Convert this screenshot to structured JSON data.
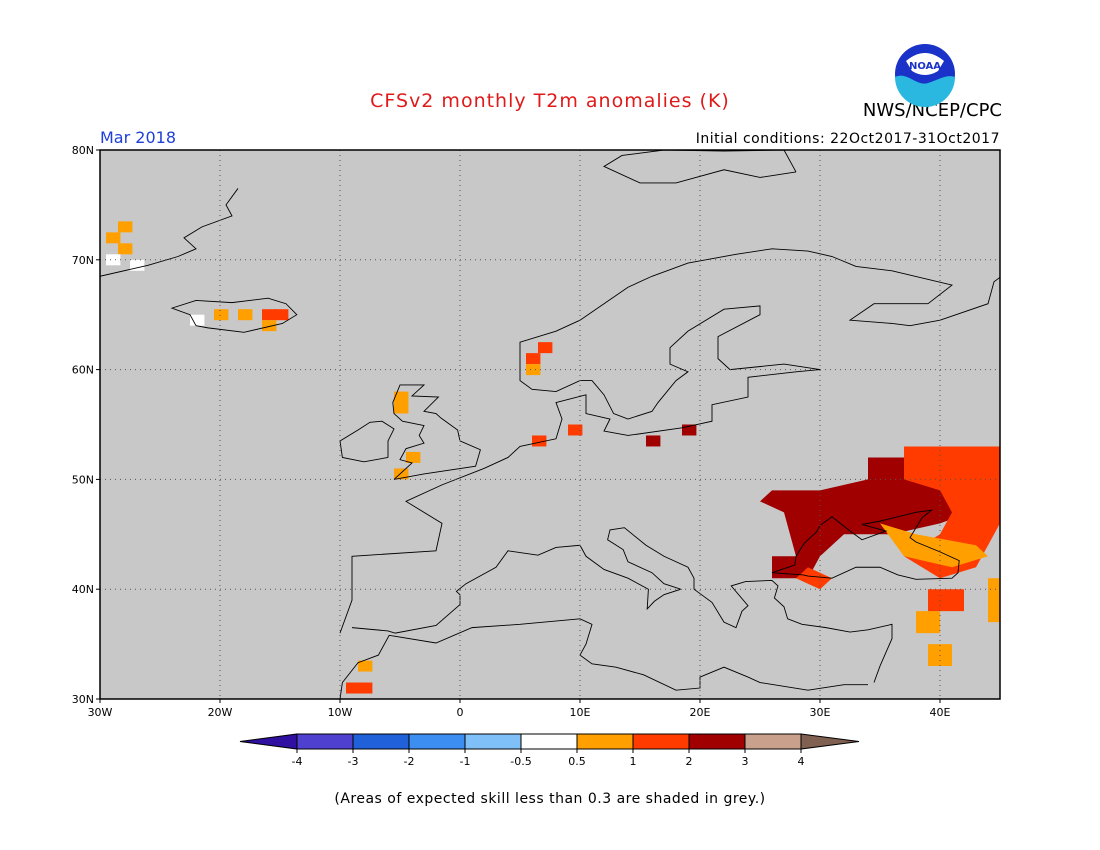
{
  "header": {
    "title": "CFSv2 monthly T2m anomalies (K)",
    "org": "NWS/NCEP/CPC",
    "logo_text": "NOAA",
    "period": "Mar 2018",
    "initial_conditions": "Initial conditions: 22Oct2017-31Oct2017"
  },
  "map": {
    "lon_range": [
      -30,
      45
    ],
    "lat_range": [
      30,
      80
    ],
    "background_color": "#c8c8c8",
    "lat_ticks": [
      {
        "value": 80,
        "label": "80N"
      },
      {
        "value": 70,
        "label": "70N"
      },
      {
        "value": 60,
        "label": "60N"
      },
      {
        "value": 50,
        "label": "50N"
      },
      {
        "value": 40,
        "label": "40N"
      },
      {
        "value": 30,
        "label": "30N"
      }
    ],
    "lon_ticks": [
      {
        "value": -30,
        "label": "30W"
      },
      {
        "value": -20,
        "label": "20W"
      },
      {
        "value": -10,
        "label": "10W"
      },
      {
        "value": 0,
        "label": "0"
      },
      {
        "value": 10,
        "label": "10E"
      },
      {
        "value": 20,
        "label": "20E"
      },
      {
        "value": 30,
        "label": "30E"
      },
      {
        "value": 40,
        "label": "40E"
      }
    ],
    "anomaly_cells": [
      {
        "lon": -29,
        "lat": 72,
        "cat": 1
      },
      {
        "lon": -28,
        "lat": 73,
        "cat": 1
      },
      {
        "lon": -28,
        "lat": 71,
        "cat": 1
      },
      {
        "lon": -29,
        "lat": 70,
        "cat": 0
      },
      {
        "lon": -27,
        "lat": 69.5,
        "cat": 0
      },
      {
        "lon": -22,
        "lat": 64.5,
        "cat": 0
      },
      {
        "lon": -20,
        "lat": 65,
        "cat": 1
      },
      {
        "lon": -18,
        "lat": 65,
        "cat": 1
      },
      {
        "lon": -16,
        "lat": 65,
        "cat": 2
      },
      {
        "lon": -15,
        "lat": 65,
        "cat": 2
      },
      {
        "lon": -16,
        "lat": 64,
        "cat": 1
      },
      {
        "lon": 7,
        "lat": 62,
        "cat": 2
      },
      {
        "lon": 6,
        "lat": 61,
        "cat": 2
      },
      {
        "lon": 6,
        "lat": 60,
        "cat": 1
      },
      {
        "lon": -5,
        "lat": 57.5,
        "cat": 1
      },
      {
        "lon": -5,
        "lat": 56.5,
        "cat": 1
      },
      {
        "lon": -4,
        "lat": 52,
        "cat": 1
      },
      {
        "lon": -5,
        "lat": 50.5,
        "cat": 1
      },
      {
        "lon": 6.5,
        "lat": 53.5,
        "cat": 2
      },
      {
        "lon": 9.5,
        "lat": 54.5,
        "cat": 2
      },
      {
        "lon": 16,
        "lat": 53.5,
        "cat": 3
      },
      {
        "lon": 19,
        "lat": 54.5,
        "cat": 3
      },
      {
        "lon": -8,
        "lat": 33,
        "cat": 1
      },
      {
        "lon": -9,
        "lat": 31,
        "cat": 2
      },
      {
        "lon": -8,
        "lat": 31,
        "cat": 2
      }
    ],
    "anomaly_regions": [
      {
        "cat": 3,
        "points": [
          [
            34,
            52
          ],
          [
            45,
            52
          ],
          [
            45,
            48
          ],
          [
            40,
            46
          ],
          [
            36,
            45
          ],
          [
            32,
            45
          ],
          [
            30,
            43
          ],
          [
            29,
            41
          ],
          [
            26,
            41
          ],
          [
            26,
            43
          ],
          [
            28,
            43
          ],
          [
            27,
            47
          ],
          [
            25,
            48
          ],
          [
            26,
            49
          ],
          [
            30,
            49
          ],
          [
            34,
            50
          ]
        ]
      },
      {
        "cat": 2,
        "points": [
          [
            37,
            53
          ],
          [
            45,
            53
          ],
          [
            45,
            46
          ],
          [
            43,
            42
          ],
          [
            40,
            41
          ],
          [
            37,
            43
          ],
          [
            40,
            45
          ],
          [
            41,
            47
          ],
          [
            40,
            49
          ],
          [
            37,
            50
          ]
        ]
      },
      {
        "cat": 1,
        "points": [
          [
            35,
            46
          ],
          [
            38,
            45
          ],
          [
            43,
            44
          ],
          [
            44,
            43
          ],
          [
            41,
            42
          ],
          [
            37,
            43
          ]
        ]
      },
      {
        "cat": 2,
        "points": [
          [
            28,
            41
          ],
          [
            30,
            40
          ],
          [
            31,
            41
          ],
          [
            29,
            42
          ]
        ]
      },
      {
        "cat": 1,
        "points": [
          [
            38,
            38
          ],
          [
            40,
            38
          ],
          [
            40,
            36
          ],
          [
            38,
            36
          ]
        ]
      },
      {
        "cat": 1,
        "points": [
          [
            44,
            41
          ],
          [
            45,
            41
          ],
          [
            45,
            37
          ],
          [
            44,
            37
          ]
        ]
      },
      {
        "cat": 1,
        "points": [
          [
            39,
            35
          ],
          [
            41,
            35
          ],
          [
            41,
            33
          ],
          [
            39,
            33
          ]
        ]
      },
      {
        "cat": 2,
        "points": [
          [
            39,
            40
          ],
          [
            42,
            40
          ],
          [
            42,
            38
          ],
          [
            39,
            38
          ]
        ]
      }
    ]
  },
  "colorbar": {
    "colors": [
      "#3010a0",
      "#5040d0",
      "#2060d8",
      "#3c8ef0",
      "#80c0f8",
      "#ffffff",
      "#ff9f00",
      "#ff3b00",
      "#a00000",
      "#c8a08c",
      "#806050"
    ],
    "labels": [
      "-4",
      "-3",
      "-2",
      "-1",
      "-0.5",
      "0.5",
      "1",
      "2",
      "3",
      "4"
    ]
  },
  "footnote": "(Areas of expected skill less than 0.3 are shaded in grey.)"
}
